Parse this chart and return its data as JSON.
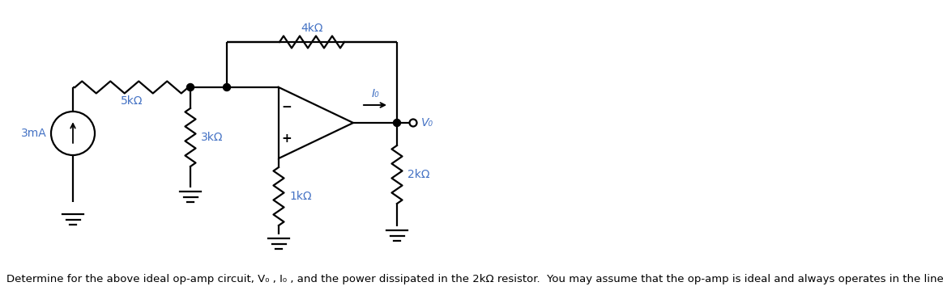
{
  "fig_width": 11.64,
  "fig_height": 3.7,
  "dpi": 100,
  "bg_color": "#ffffff",
  "line_color": "#000000",
  "label_color": "#4472c4",
  "text_color": "#000000",
  "line_width": 1.6,
  "caption": "Determine for the above ideal op-amp circuit, V₀ , I₀ , and the power dissipated in the 2kΩ resistor.  You may assume that the op-amp is ideal and always operates in the linear region.",
  "caption_fontsize": 9.5,
  "label_fontsize": 10,
  "lbl_3mA": "3mA",
  "lbl_5k": "5kΩ",
  "lbl_3k": "3kΩ",
  "lbl_1k": "1kΩ",
  "lbl_4k": "4kΩ",
  "lbl_2k": "2kΩ",
  "lbl_Io": "I₀",
  "lbl_Vo": "V₀",
  "lbl_minus": "−",
  "lbl_plus": "+"
}
